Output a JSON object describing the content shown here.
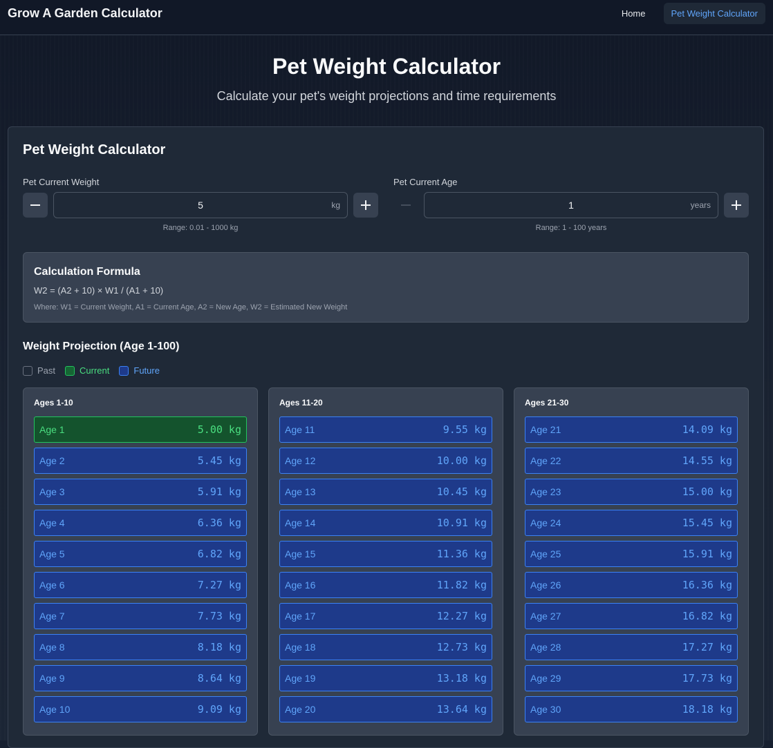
{
  "nav": {
    "brand": "Grow A Garden Calculator",
    "links": [
      {
        "label": "Home"
      },
      {
        "label": "Pet Weight Calculator"
      }
    ]
  },
  "hero": {
    "title": "Pet Weight Calculator",
    "subtitle": "Calculate your pet's weight projections and time requirements"
  },
  "card": {
    "title": "Pet Weight Calculator",
    "weight": {
      "label": "Pet Current Weight",
      "value": "5",
      "unit": "kg",
      "range": "Range: 0.01 - 1000 kg"
    },
    "age": {
      "label": "Pet Current Age",
      "value": "1",
      "unit": "years",
      "range": "Range: 1 - 100 years"
    },
    "formula": {
      "title": "Calculation Formula",
      "equation": "W2 = (A2 + 10) × W1 / (A1 + 10)",
      "where": "Where: W1 = Current Weight, A1 = Current Age, A2 = New Age, W2 = Estimated New Weight"
    },
    "projection_title": "Weight Projection (Age 1-100)",
    "legend": {
      "past": "Past",
      "current": "Current",
      "future": "Future"
    },
    "groups": [
      {
        "title": "Ages 1-10",
        "rows": [
          {
            "age": "Age 1",
            "weight": "5.00 kg",
            "status": "current"
          },
          {
            "age": "Age 2",
            "weight": "5.45 kg",
            "status": "future"
          },
          {
            "age": "Age 3",
            "weight": "5.91 kg",
            "status": "future"
          },
          {
            "age": "Age 4",
            "weight": "6.36 kg",
            "status": "future"
          },
          {
            "age": "Age 5",
            "weight": "6.82 kg",
            "status": "future"
          },
          {
            "age": "Age 6",
            "weight": "7.27 kg",
            "status": "future"
          },
          {
            "age": "Age 7",
            "weight": "7.73 kg",
            "status": "future"
          },
          {
            "age": "Age 8",
            "weight": "8.18 kg",
            "status": "future"
          },
          {
            "age": "Age 9",
            "weight": "8.64 kg",
            "status": "future"
          },
          {
            "age": "Age 10",
            "weight": "9.09 kg",
            "status": "future"
          }
        ]
      },
      {
        "title": "Ages 11-20",
        "rows": [
          {
            "age": "Age 11",
            "weight": "9.55 kg",
            "status": "future"
          },
          {
            "age": "Age 12",
            "weight": "10.00 kg",
            "status": "future"
          },
          {
            "age": "Age 13",
            "weight": "10.45 kg",
            "status": "future"
          },
          {
            "age": "Age 14",
            "weight": "10.91 kg",
            "status": "future"
          },
          {
            "age": "Age 15",
            "weight": "11.36 kg",
            "status": "future"
          },
          {
            "age": "Age 16",
            "weight": "11.82 kg",
            "status": "future"
          },
          {
            "age": "Age 17",
            "weight": "12.27 kg",
            "status": "future"
          },
          {
            "age": "Age 18",
            "weight": "12.73 kg",
            "status": "future"
          },
          {
            "age": "Age 19",
            "weight": "13.18 kg",
            "status": "future"
          },
          {
            "age": "Age 20",
            "weight": "13.64 kg",
            "status": "future"
          }
        ]
      },
      {
        "title": "Ages 21-30",
        "rows": [
          {
            "age": "Age 21",
            "weight": "14.09 kg",
            "status": "future"
          },
          {
            "age": "Age 22",
            "weight": "14.55 kg",
            "status": "future"
          },
          {
            "age": "Age 23",
            "weight": "15.00 kg",
            "status": "future"
          },
          {
            "age": "Age 24",
            "weight": "15.45 kg",
            "status": "future"
          },
          {
            "age": "Age 25",
            "weight": "15.91 kg",
            "status": "future"
          },
          {
            "age": "Age 26",
            "weight": "16.36 kg",
            "status": "future"
          },
          {
            "age": "Age 27",
            "weight": "16.82 kg",
            "status": "future"
          },
          {
            "age": "Age 28",
            "weight": "17.27 kg",
            "status": "future"
          },
          {
            "age": "Age 29",
            "weight": "17.73 kg",
            "status": "future"
          },
          {
            "age": "Age 30",
            "weight": "18.18 kg",
            "status": "future"
          }
        ]
      }
    ]
  }
}
